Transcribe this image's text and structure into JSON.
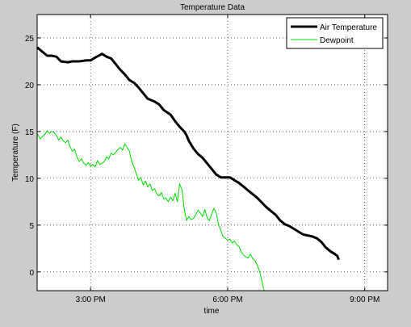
{
  "chart_data": {
    "type": "line",
    "title": "Temperature Data",
    "xlabel": "time",
    "ylabel": "Temperature (F)",
    "xlim": [
      1.83,
      9.5
    ],
    "ylim": [
      -2,
      27.5
    ],
    "x_ticks": [
      {
        "value": 3,
        "label": "3:00 PM"
      },
      {
        "value": 6,
        "label": "6:00 PM"
      },
      {
        "value": 9,
        "label": "9:00 PM"
      }
    ],
    "y_ticks": [
      0,
      5,
      10,
      15,
      20,
      25
    ],
    "grid": true,
    "legend_position": "top-right",
    "series": [
      {
        "name": "Air Temperature",
        "color": "#000000",
        "x": [
          1.83,
          1.95,
          2.05,
          2.15,
          2.25,
          2.35,
          2.5,
          2.6,
          2.75,
          2.9,
          3.0,
          3.1,
          3.25,
          3.35,
          3.45,
          3.55,
          3.65,
          3.75,
          3.85,
          3.95,
          4.05,
          4.15,
          4.25,
          4.4,
          4.5,
          4.6,
          4.75,
          4.85,
          4.95,
          5.05,
          5.1,
          5.15,
          5.25,
          5.35,
          5.45,
          5.55,
          5.65,
          5.75,
          5.85,
          5.95,
          6.05,
          6.15,
          6.25,
          6.35,
          6.45,
          6.55,
          6.65,
          6.75,
          6.85,
          6.95,
          7.05,
          7.15,
          7.25,
          7.35,
          7.45,
          7.55,
          7.65,
          7.75,
          7.85,
          7.95,
          8.05,
          8.15,
          8.25,
          8.35,
          8.4,
          8.43
        ],
        "values": [
          24.0,
          23.5,
          23.1,
          23.1,
          23.0,
          22.5,
          22.4,
          22.5,
          22.5,
          22.6,
          22.6,
          22.9,
          23.3,
          23.0,
          22.8,
          22.2,
          21.6,
          21.1,
          20.5,
          20.2,
          19.7,
          19.1,
          18.5,
          18.2,
          17.9,
          17.3,
          16.8,
          16.1,
          15.5,
          15.0,
          14.6,
          14.0,
          13.2,
          12.6,
          12.2,
          11.6,
          11.0,
          10.4,
          10.1,
          10.1,
          10.1,
          9.8,
          9.5,
          9.1,
          8.7,
          8.3,
          7.9,
          7.4,
          6.9,
          6.5,
          6.1,
          5.5,
          5.1,
          4.9,
          4.6,
          4.3,
          4.0,
          3.9,
          3.8,
          3.6,
          3.2,
          2.6,
          2.2,
          1.9,
          1.7,
          1.3
        ]
      },
      {
        "name": "Dewpoint",
        "color": "#00dd00",
        "x": [
          1.83,
          1.9,
          1.95,
          2.0,
          2.05,
          2.1,
          2.15,
          2.2,
          2.25,
          2.3,
          2.35,
          2.4,
          2.45,
          2.5,
          2.55,
          2.6,
          2.65,
          2.7,
          2.75,
          2.8,
          2.85,
          2.9,
          2.95,
          3.0,
          3.05,
          3.1,
          3.15,
          3.2,
          3.25,
          3.3,
          3.35,
          3.4,
          3.45,
          3.5,
          3.55,
          3.6,
          3.65,
          3.7,
          3.75,
          3.8,
          3.85,
          3.9,
          3.95,
          4.0,
          4.05,
          4.1,
          4.15,
          4.2,
          4.25,
          4.3,
          4.35,
          4.4,
          4.45,
          4.5,
          4.55,
          4.6,
          4.65,
          4.7,
          4.75,
          4.8,
          4.85,
          4.9,
          4.95,
          5.0,
          5.05,
          5.1,
          5.15,
          5.2,
          5.25,
          5.3,
          5.35,
          5.4,
          5.45,
          5.5,
          5.55,
          5.6,
          5.65,
          5.7,
          5.75,
          5.8,
          5.85,
          5.9,
          5.95,
          6.0,
          6.05,
          6.1,
          6.15,
          6.2,
          6.25,
          6.3,
          6.35,
          6.4,
          6.45,
          6.5,
          6.55,
          6.6,
          6.65,
          6.7,
          6.75,
          6.78,
          6.8
        ],
        "values": [
          14.8,
          14.2,
          14.5,
          14.7,
          15.1,
          14.8,
          15.0,
          14.9,
          14.6,
          14.1,
          14.4,
          14.0,
          13.8,
          14.1,
          13.4,
          12.9,
          13.1,
          12.3,
          11.8,
          12.1,
          11.6,
          11.4,
          11.7,
          11.3,
          11.5,
          11.2,
          11.9,
          11.5,
          11.6,
          11.8,
          12.3,
          12.1,
          12.7,
          12.5,
          12.8,
          13.1,
          13.3,
          13.0,
          13.7,
          13.3,
          12.9,
          11.8,
          11.2,
          10.5,
          9.8,
          10.1,
          9.3,
          9.7,
          9.1,
          9.4,
          8.7,
          8.9,
          8.3,
          8.1,
          8.5,
          7.8,
          7.9,
          7.5,
          8.0,
          7.6,
          8.4,
          7.5,
          9.4,
          8.8,
          6.7,
          5.5,
          5.9,
          5.6,
          5.7,
          6.1,
          6.6,
          6.3,
          5.9,
          6.7,
          5.8,
          5.5,
          6.2,
          6.8,
          6.3,
          5.1,
          4.4,
          3.8,
          3.6,
          3.4,
          3.5,
          3.1,
          3.3,
          2.9,
          2.7,
          2.1,
          1.8,
          1.6,
          1.5,
          1.9,
          1.4,
          1.2,
          0.7,
          0.0,
          -1.0,
          -1.7,
          -2.0
        ]
      }
    ]
  }
}
